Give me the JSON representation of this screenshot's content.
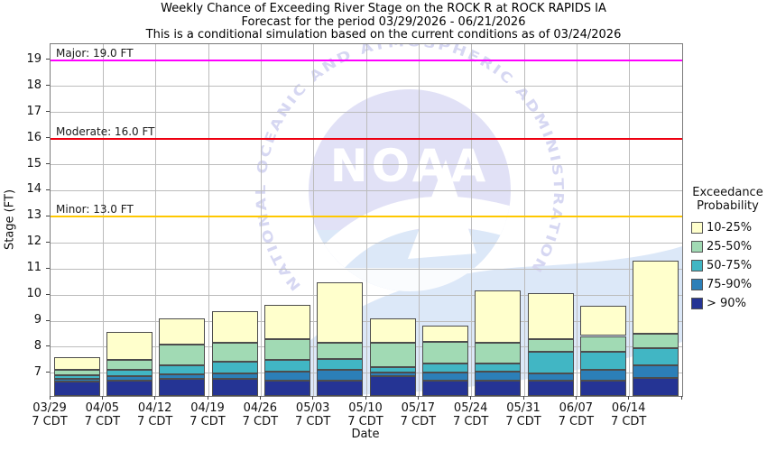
{
  "title": {
    "line1": "Weekly Chance of Exceeding River Stage on the ROCK R at ROCK RAPIDS IA",
    "line2": "Forecast for the period 03/29/2026 - 06/21/2026",
    "line3": "This is a conditional simulation based on the current conditions as of 03/24/2026"
  },
  "watermark": {
    "arc_text": "NATIONAL OCEANIC AND ATMOSPHERIC ADMINISTRATION",
    "acronym": "NOAA"
  },
  "legend": {
    "title_lines": [
      "Exceedance",
      "Probability"
    ],
    "items": [
      {
        "label": "10-25%",
        "color": "#ffffcc"
      },
      {
        "label": "25-50%",
        "color": "#a1dab4"
      },
      {
        "label": "50-75%",
        "color": "#41b6c4"
      },
      {
        "label": "75-90%",
        "color": "#2c7fb8"
      },
      {
        "label": "> 90%",
        "color": "#253494"
      }
    ]
  },
  "thresholds": [
    {
      "name": "Major",
      "label": "Major: 19.0 FT",
      "value": 19.0,
      "color": "#ff00ff"
    },
    {
      "name": "Moderate",
      "label": "Moderate: 16.0 FT",
      "value": 16.0,
      "color": "#ee0011"
    },
    {
      "name": "Minor",
      "label": "Minor: 13.0 FT",
      "value": 13.0,
      "color": "#ffc800"
    }
  ],
  "chart_data": {
    "type": "bar",
    "stacked": true,
    "title": "Weekly Chance of Exceeding River Stage on the ROCK R at ROCK RAPIDS IA",
    "xlabel": "Date",
    "ylabel": "Stage (FT)",
    "ylim": [
      6.13,
      19.62
    ],
    "y_ticks": [
      7,
      8,
      9,
      10,
      11,
      12,
      13,
      14,
      15,
      16,
      17,
      18,
      19
    ],
    "grid": true,
    "legend_position": "right",
    "categories": [
      "03/29",
      "04/05",
      "04/12",
      "04/19",
      "04/26",
      "05/03",
      "05/10",
      "05/17",
      "05/24",
      "05/31",
      "06/07",
      "06/14"
    ],
    "tick_sublabel": "7 CDT",
    "baseline_ft": 6.13,
    "series": [
      {
        "name": "> 90%",
        "color": "#253494",
        "cumulative_top_ft": [
          6.7,
          6.71,
          6.78,
          6.8,
          6.72,
          6.73,
          6.88,
          6.71,
          6.71,
          6.71,
          6.71,
          6.83
        ]
      },
      {
        "name": "75-90%",
        "color": "#2c7fb8",
        "cumulative_top_ft": [
          6.78,
          6.9,
          6.97,
          7.01,
          7.08,
          7.12,
          7.03,
          7.03,
          7.06,
          7.0,
          7.12,
          7.29
        ]
      },
      {
        "name": "50-75%",
        "color": "#41b6c4",
        "cumulative_top_ft": [
          6.93,
          7.15,
          7.3,
          7.43,
          7.5,
          7.55,
          7.23,
          7.37,
          7.38,
          7.81,
          7.81,
          7.95
        ]
      },
      {
        "name": "25-50%",
        "color": "#a1dab4",
        "cumulative_top_ft": [
          7.12,
          7.53,
          8.1,
          8.17,
          8.31,
          8.16,
          8.16,
          8.2,
          8.16,
          8.3,
          8.43,
          8.51
        ]
      },
      {
        "name": "10-25%",
        "color": "#ffffcc",
        "cumulative_top_ft": [
          7.62,
          8.6,
          9.1,
          9.37,
          9.62,
          10.5,
          9.1,
          8.82,
          10.18,
          10.08,
          9.6,
          11.32
        ]
      }
    ]
  },
  "colors": {
    "grid": "#bcbcbc",
    "frame": "#7a7a7a",
    "bar_border": "#4d4d4d",
    "tick": "#444444",
    "watermark_disc": "#e1e1f6",
    "watermark_arc_text": "#d6d7f2",
    "watermark_sea": "#dce8f8",
    "watermark_bird": "#ffffff"
  }
}
